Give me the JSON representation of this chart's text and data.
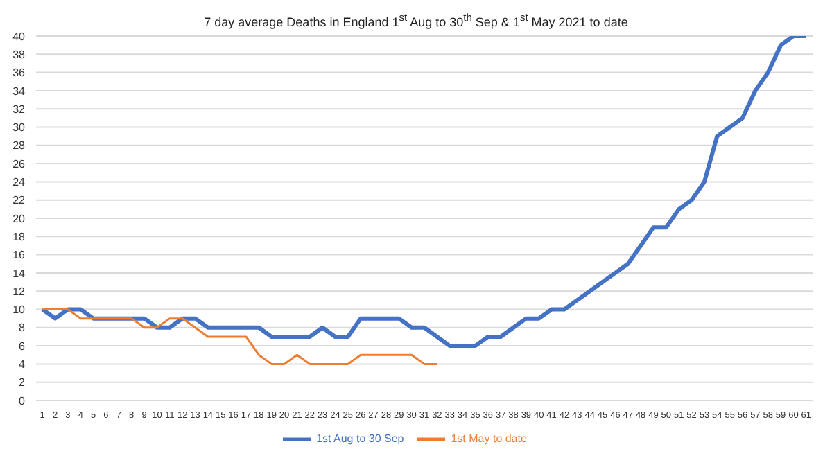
{
  "chart_data": {
    "type": "line",
    "title": "7 day average Deaths in England 1$^{st}$ Aug to 30$^{th}$ Sep & 1$^{st}$ May 2021 to date",
    "x": [
      1,
      2,
      3,
      4,
      5,
      6,
      7,
      8,
      9,
      10,
      11,
      12,
      13,
      14,
      15,
      16,
      17,
      18,
      19,
      20,
      21,
      22,
      23,
      24,
      25,
      26,
      27,
      28,
      29,
      30,
      31,
      32,
      33,
      34,
      35,
      36,
      37,
      38,
      39,
      40,
      41,
      42,
      43,
      44,
      45,
      46,
      47,
      48,
      49,
      50,
      51,
      52,
      53,
      54,
      55,
      56,
      57,
      58,
      59,
      60,
      61
    ],
    "xlim": [
      0.5,
      61.5
    ],
    "xticks": [
      1,
      2,
      3,
      4,
      5,
      6,
      7,
      8,
      9,
      10,
      11,
      12,
      13,
      14,
      15,
      16,
      17,
      18,
      19,
      20,
      21,
      22,
      23,
      24,
      25,
      26,
      27,
      28,
      29,
      30,
      31,
      32,
      33,
      34,
      35,
      36,
      37,
      38,
      39,
      40,
      41,
      42,
      43,
      44,
      45,
      46,
      47,
      48,
      49,
      50,
      51,
      52,
      53,
      54,
      55,
      56,
      57,
      58,
      59,
      60,
      61
    ],
    "series": [
      {
        "name": "1st Aug to 30 Sep",
        "color": "#4472c4",
        "values": [
          10,
          9,
          10,
          10,
          9,
          9,
          9,
          9,
          9,
          8,
          8,
          9,
          9,
          8,
          8,
          8,
          8,
          8,
          7,
          7,
          7,
          7,
          8,
          7,
          7,
          9,
          9,
          9,
          9,
          8,
          8,
          7,
          6,
          6,
          6,
          7,
          7,
          8,
          9,
          9,
          10,
          10,
          11,
          12,
          13,
          14,
          15,
          17,
          19,
          19,
          21,
          22,
          24,
          29,
          30,
          31,
          34,
          36,
          39,
          40,
          40
        ]
      },
      {
        "name": "1st May to date",
        "color": "#ed7d31",
        "values": [
          10,
          10,
          10,
          9,
          9,
          9,
          9,
          9,
          8,
          8,
          9,
          9,
          8,
          7,
          7,
          7,
          7,
          5,
          4,
          4,
          5,
          4,
          4,
          4,
          4,
          5,
          5,
          5,
          5,
          5,
          4,
          4,
          null,
          null,
          null,
          null,
          null,
          null,
          null,
          null,
          null,
          null,
          null,
          null,
          null,
          null,
          null,
          null,
          null,
          null,
          null,
          null,
          null,
          null,
          null,
          null,
          null,
          null,
          null,
          null,
          null
        ]
      }
    ],
    "ylim": [
      0,
      40
    ],
    "yticks": [
      0,
      2,
      4,
      6,
      8,
      10,
      12,
      14,
      16,
      18,
      20,
      22,
      24,
      26,
      28,
      30,
      32,
      34,
      36,
      38,
      40
    ],
    "grid": "y",
    "legend": "bottom",
    "marker": "none",
    "line_style": "solid"
  }
}
